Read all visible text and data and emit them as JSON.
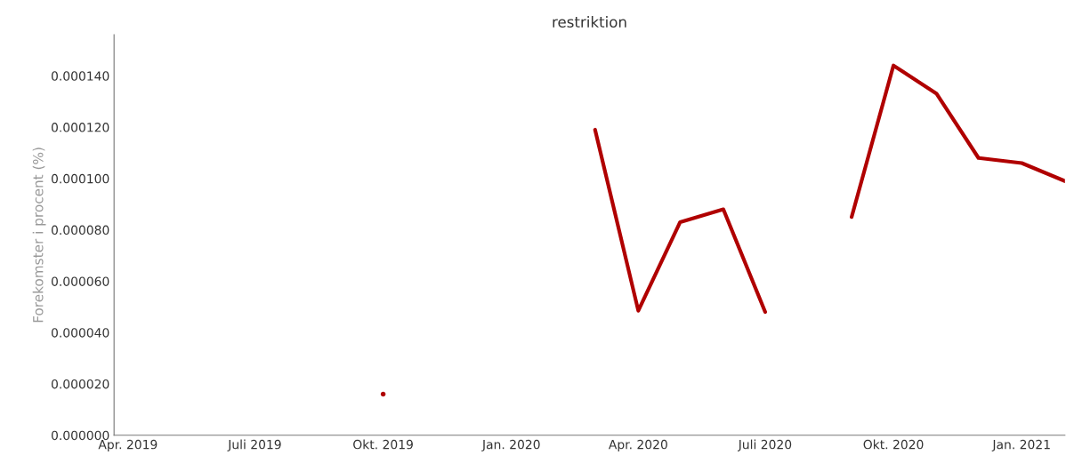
{
  "chart_data": {
    "type": "line",
    "title": "restriktion",
    "ylabel": "Forekomster i procent (%)",
    "x": [
      "2019-10-01",
      "2019-11-01",
      "2019-12-01",
      "2020-01-01",
      "2020-02-01",
      "2020-03-01",
      "2020-04-01",
      "2020-05-01",
      "2020-06-01",
      "2020-07-01",
      "2020-08-01",
      "2020-09-01",
      "2020-10-01",
      "2020-11-01",
      "2020-12-01",
      "2021-01-01",
      "2021-02-01"
    ],
    "series": [
      {
        "color": "#b00000",
        "values": [
          1.6e-05,
          null,
          null,
          null,
          null,
          0.000119,
          4.85e-05,
          8.3e-05,
          8.8e-05,
          4.8e-05,
          null,
          8.5e-05,
          0.000144,
          0.000133,
          0.000108,
          0.000106,
          9.9e-05
        ]
      }
    ],
    "xlim": [
      "2019-03-22",
      "2021-02-01"
    ],
    "xticks": [
      {
        "value": "2019-04-01",
        "label": "Apr. 2019"
      },
      {
        "value": "2019-07-01",
        "label": "Juli 2019"
      },
      {
        "value": "2019-10-01",
        "label": "Okt. 2019"
      },
      {
        "value": "2020-01-01",
        "label": "Jan. 2020"
      },
      {
        "value": "2020-04-01",
        "label": "Apr. 2020"
      },
      {
        "value": "2020-07-01",
        "label": "Juli 2020"
      },
      {
        "value": "2020-10-01",
        "label": "Okt. 2020"
      },
      {
        "value": "2021-01-01",
        "label": "Jan. 2021"
      }
    ],
    "ylim": [
      0,
      0.000156
    ],
    "yticks": [
      {
        "value": 0,
        "label": "0.000000"
      },
      {
        "value": 2e-05,
        "label": "0.000020"
      },
      {
        "value": 4e-05,
        "label": "0.000040"
      },
      {
        "value": 6e-05,
        "label": "0.000060"
      },
      {
        "value": 8e-05,
        "label": "0.000080"
      },
      {
        "value": 0.0001,
        "label": "0.000100"
      },
      {
        "value": 0.00012,
        "label": "0.000120"
      },
      {
        "value": 0.00014,
        "label": "0.000140"
      }
    ],
    "grid": false,
    "legend": false,
    "line_style": "solid",
    "marker": "none"
  }
}
